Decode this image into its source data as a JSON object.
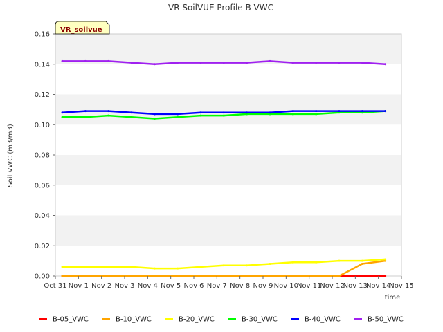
{
  "chart_data": {
    "type": "line",
    "title": "VR SoilVUE Profile B VWC",
    "xlabel": "time",
    "ylabel": "Soil VWC (m3/m3)",
    "badge": "VR_soilvue",
    "ylim": [
      0,
      0.16
    ],
    "yticks": [
      "0.00",
      "0.02",
      "0.04",
      "0.06",
      "0.08",
      "0.10",
      "0.12",
      "0.14",
      "0.16"
    ],
    "xticks": [
      "Oct 31",
      "Nov 1",
      "Nov 2",
      "Nov 3",
      "Nov 4",
      "Nov 5",
      "Nov 6",
      "Nov 7",
      "Nov 8",
      "Nov 9",
      "Nov 10",
      "Nov 11",
      "Nov 12",
      "Nov 13",
      "Nov 14",
      "Nov 15"
    ],
    "xlim": [
      "Oct 31",
      "Nov 15"
    ],
    "x": [
      "Oct 31",
      "Nov 1",
      "Nov 2",
      "Nov 3",
      "Nov 4",
      "Nov 5",
      "Nov 6",
      "Nov 7",
      "Nov 8",
      "Nov 9",
      "Nov 10",
      "Nov 11",
      "Nov 12",
      "Nov 13",
      "Nov 14"
    ],
    "grid": "horizontal bands",
    "legend_position": "bottom",
    "series": [
      {
        "name": "B-05_VWC",
        "color": "#ff0000",
        "values": [
          0.0,
          0.0,
          0.0,
          0.0,
          0.0,
          0.0,
          0.0,
          0.0,
          0.0,
          0.0,
          0.0,
          0.0,
          0.0,
          0.0,
          0.0
        ]
      },
      {
        "name": "B-10_VWC",
        "color": "#ffa500",
        "values": [
          0.0,
          0.0,
          0.0,
          0.0,
          0.0,
          0.0,
          0.0,
          0.0,
          0.0,
          0.0,
          0.0,
          0.0,
          0.0,
          0.008,
          0.01
        ]
      },
      {
        "name": "B-20_VWC",
        "color": "#ffff00",
        "values": [
          0.006,
          0.006,
          0.006,
          0.006,
          0.005,
          0.005,
          0.006,
          0.007,
          0.007,
          0.008,
          0.009,
          0.009,
          0.01,
          0.01,
          0.011
        ]
      },
      {
        "name": "B-30_VWC",
        "color": "#00ff00",
        "values": [
          0.105,
          0.105,
          0.106,
          0.105,
          0.104,
          0.105,
          0.106,
          0.106,
          0.107,
          0.107,
          0.107,
          0.107,
          0.108,
          0.108,
          0.109
        ]
      },
      {
        "name": "B-40_VWC",
        "color": "#0000ff",
        "values": [
          0.108,
          0.109,
          0.109,
          0.108,
          0.107,
          0.107,
          0.108,
          0.108,
          0.108,
          0.108,
          0.109,
          0.109,
          0.109,
          0.109,
          0.109
        ]
      },
      {
        "name": "B-50_VWC",
        "color": "#a020f0",
        "values": [
          0.142,
          0.142,
          0.142,
          0.141,
          0.14,
          0.141,
          0.141,
          0.141,
          0.141,
          0.142,
          0.141,
          0.141,
          0.141,
          0.141,
          0.14
        ]
      }
    ]
  }
}
